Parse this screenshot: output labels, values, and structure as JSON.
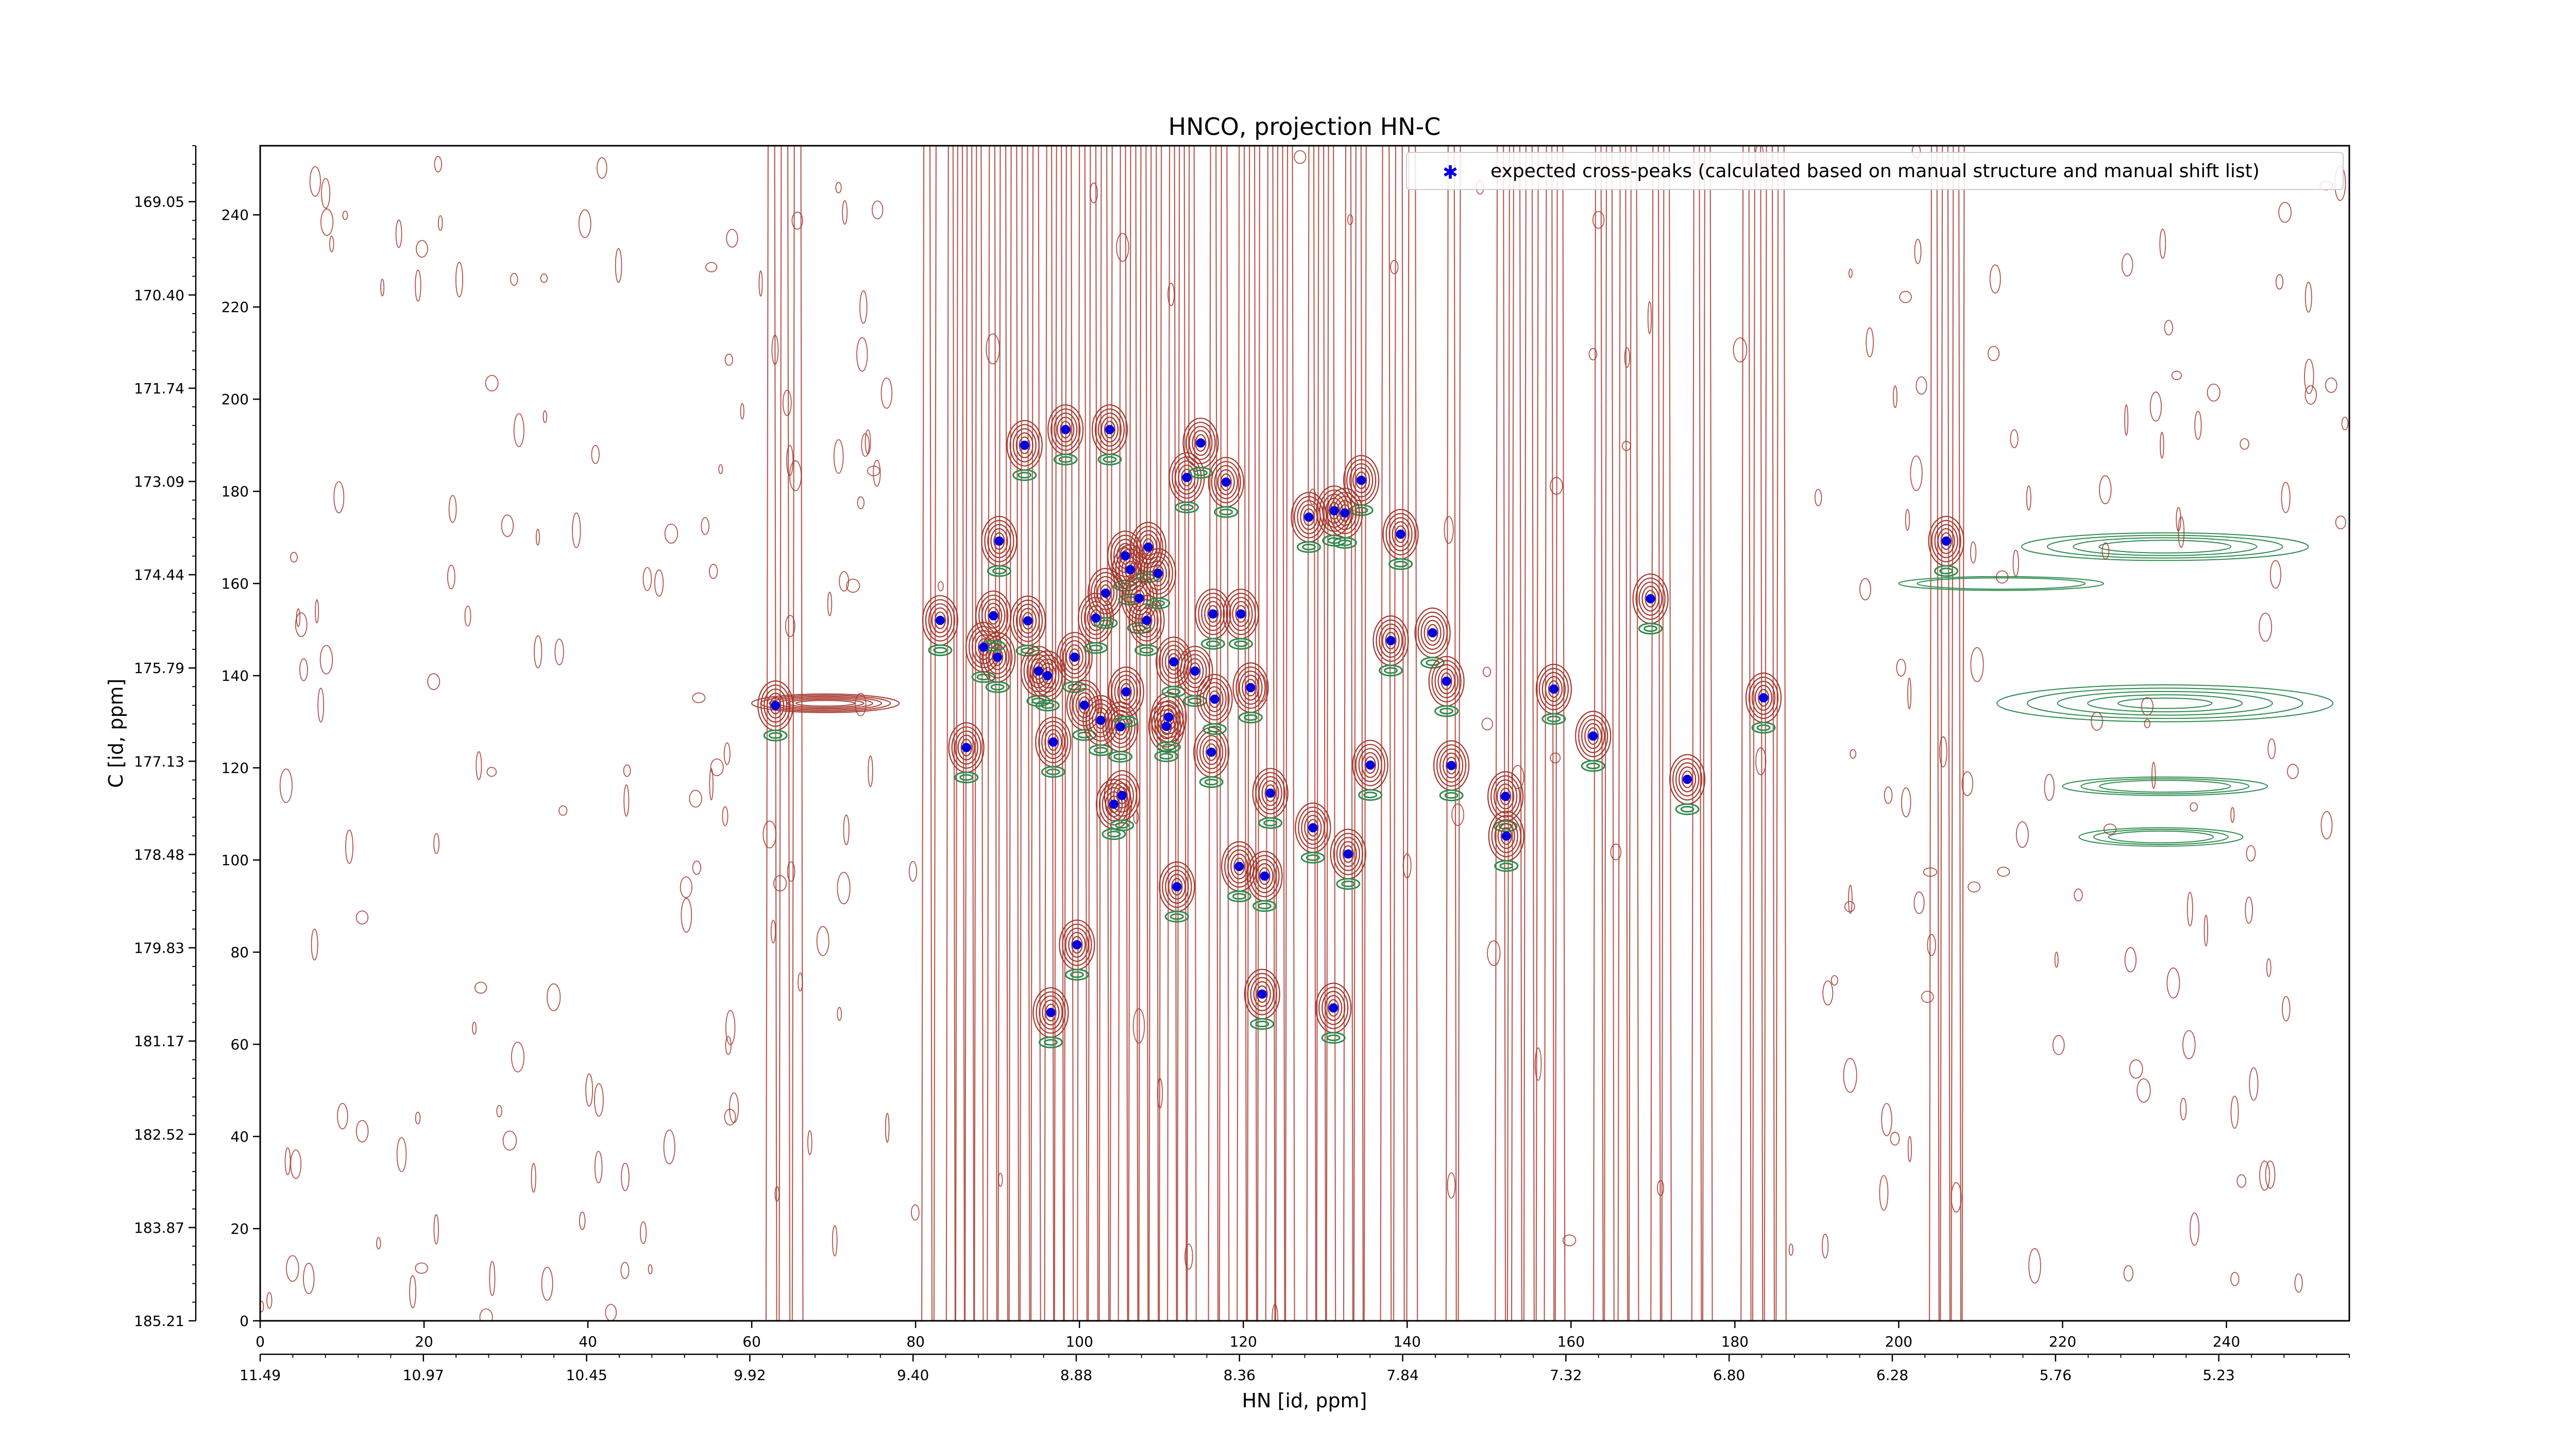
{
  "chart_data": {
    "type": "scatter",
    "title": "HNCO, projection HN-C",
    "xlabel": "HN [id, ppm]",
    "ylabel": "C [id, ppm]",
    "xlim": [
      0,
      255
    ],
    "ylim": [
      0,
      255
    ],
    "x_index_ticks": [
      "0",
      "20",
      "40",
      "60",
      "80",
      "100",
      "120",
      "140",
      "160",
      "180",
      "200",
      "220",
      "240"
    ],
    "y_index_ticks": [
      "0",
      "20",
      "40",
      "60",
      "80",
      "100",
      "120",
      "140",
      "160",
      "180",
      "200",
      "220",
      "240"
    ],
    "x_ppm_ticks": [
      "11.49",
      "10.97",
      "10.45",
      "9.92",
      "9.40",
      "8.88",
      "8.36",
      "7.84",
      "7.32",
      "6.80",
      "6.28",
      "5.76",
      "5.23"
    ],
    "y_ppm_ticks": [
      "185.21",
      "183.87",
      "182.52",
      "181.17",
      "179.83",
      "178.48",
      "177.13",
      "175.79",
      "174.44",
      "173.09",
      "171.74",
      "170.40",
      "169.05"
    ],
    "legend": {
      "position": "top-right",
      "label": "expected cross-peaks (calculated based on manual structure and manual shift list)"
    },
    "colors": {
      "positive_contours": "#a5362b",
      "negative_contours": "#2e8b4f",
      "points": "#0000e0"
    },
    "points": [
      [
        62.9,
        133.5
      ],
      [
        83.0,
        152.0
      ],
      [
        86.2,
        124.4
      ],
      [
        88.3,
        146.2
      ],
      [
        90.0,
        144.0
      ],
      [
        89.5,
        153.0
      ],
      [
        90.2,
        169.2
      ],
      [
        93.3,
        190.0
      ],
      [
        93.7,
        151.9
      ],
      [
        95.0,
        141.0
      ],
      [
        96.8,
        125.6
      ],
      [
        96.1,
        140.0
      ],
      [
        96.5,
        66.9
      ],
      [
        98.3,
        193.4
      ],
      [
        99.4,
        144.0
      ],
      [
        99.7,
        81.6
      ],
      [
        100.6,
        133.6
      ],
      [
        102.0,
        152.5
      ],
      [
        102.6,
        130.3
      ],
      [
        103.2,
        157.9
      ],
      [
        104.2,
        112.1
      ],
      [
        105.0,
        128.9
      ],
      [
        105.7,
        136.5
      ],
      [
        105.2,
        114.0
      ],
      [
        105.6,
        166.0
      ],
      [
        106.2,
        163.0
      ],
      [
        107.3,
        156.8
      ],
      [
        108.2,
        152.0
      ],
      [
        108.4,
        167.9
      ],
      [
        109.6,
        162.2
      ],
      [
        103.7,
        193.4
      ],
      [
        110.6,
        129.0
      ],
      [
        110.9,
        131.0
      ],
      [
        111.5,
        143.0
      ],
      [
        111.9,
        94.2
      ],
      [
        113.1,
        183.0
      ],
      [
        114.8,
        190.5
      ],
      [
        114.1,
        141.0
      ],
      [
        116.1,
        123.4
      ],
      [
        116.5,
        134.9
      ],
      [
        117.9,
        182.0
      ],
      [
        116.3,
        153.4
      ],
      [
        119.5,
        98.6
      ],
      [
        119.7,
        153.4
      ],
      [
        120.9,
        137.4
      ],
      [
        122.3,
        70.9
      ],
      [
        122.6,
        96.5
      ],
      [
        123.3,
        114.5
      ],
      [
        128.0,
        174.4
      ],
      [
        128.5,
        107.0
      ],
      [
        131.1,
        175.8
      ],
      [
        131.0,
        67.9
      ],
      [
        132.8,
        101.3
      ],
      [
        134.4,
        182.4
      ],
      [
        132.4,
        175.3
      ],
      [
        135.5,
        120.6
      ],
      [
        138.0,
        147.6
      ],
      [
        139.2,
        170.7
      ],
      [
        143.1,
        149.3
      ],
      [
        144.8,
        138.8
      ],
      [
        145.4,
        120.5
      ],
      [
        152.0,
        113.8
      ],
      [
        152.1,
        105.2
      ],
      [
        157.9,
        137.1
      ],
      [
        162.7,
        126.9
      ],
      [
        169.7,
        156.7
      ],
      [
        174.2,
        117.5
      ],
      [
        183.5,
        135.2
      ],
      [
        205.8,
        169.2
      ]
    ]
  }
}
